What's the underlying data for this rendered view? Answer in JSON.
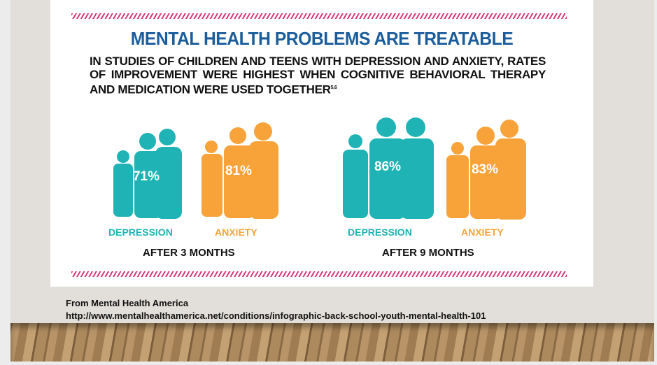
{
  "infographic": {
    "title": "MENTAL HEALTH PROBLEMS ARE TREATABLE",
    "subtitle": "IN STUDIES OF CHILDREN AND TEENS WITH DEPRESSION AND ANXIETY, RATES OF IMPROVEMENT WERE HIGHEST WHEN COGNITIVE BEHAVIORAL THERAPY AND MEDICATION WERE USED TOGETHER",
    "footnote": "5,6",
    "colors": {
      "title": "#1b5d9c",
      "depression": "#1fb3b5",
      "anxiety": "#f7a33a",
      "stripe": "#d8397a"
    },
    "periods": [
      {
        "label": "AFTER 3 MONTHS",
        "groups": [
          {
            "label": "DEPRESSION",
            "value": "71%"
          },
          {
            "label": "ANXIETY",
            "value": "81%"
          }
        ]
      },
      {
        "label": "AFTER 9 MONTHS",
        "groups": [
          {
            "label": "DEPRESSION",
            "value": "86%"
          },
          {
            "label": "ANXIETY",
            "value": "83%"
          }
        ]
      }
    ]
  },
  "credit": {
    "source": "From Mental Health America",
    "url": "http://www.mentalhealthamerica.net/conditions/infographic-back-school-youth-mental-health-101"
  }
}
